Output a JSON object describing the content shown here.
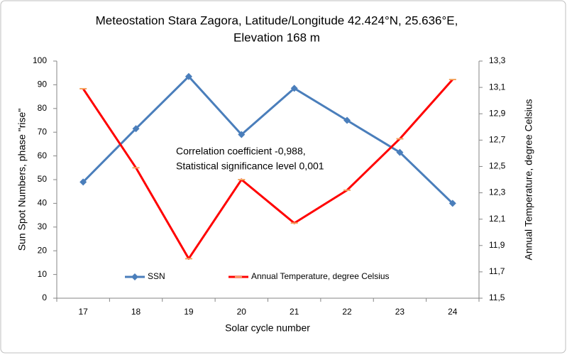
{
  "chart_data": {
    "type": "line",
    "title": [
      "Meteostation Stara Zagora, Latitude/Longitude 42.424°N, 25.636°E,",
      "Elevation 168 m"
    ],
    "x_label": "Solar cycle number",
    "y_label": "Sun Spot Numbers, phase \"rise\"",
    "y2_label": "Annual Temperature, degree Celsius",
    "annotation": [
      "Correlation coefficient -0,988,",
      "Statistical significance level 0,001"
    ],
    "categories": [
      "17",
      "18",
      "19",
      "20",
      "21",
      "22",
      "23",
      "24"
    ],
    "series": [
      {
        "name": "SSN",
        "color": "#4a7ebb",
        "values": [
          49,
          71.5,
          93.5,
          69,
          88.5,
          75,
          61.5,
          40
        ]
      },
      {
        "name": "Annual Temperature, degree Celsius",
        "color": "#ff0000",
        "axis": "y2",
        "values": [
          13.09,
          12.49,
          11.8,
          12.4,
          12.07,
          12.32,
          12.71,
          13.16
        ]
      }
    ],
    "ylim": [
      0,
      100
    ],
    "yticks": [
      0,
      10,
      20,
      30,
      40,
      50,
      60,
      70,
      80,
      90,
      100
    ],
    "y2lim": [
      11.5,
      13.3
    ],
    "y2ticks": [
      {
        "value": 11.5,
        "label": "11,5"
      },
      {
        "value": 11.7,
        "label": "11,7"
      },
      {
        "value": 11.9,
        "label": "11,9"
      },
      {
        "value": 12.1,
        "label": "12,1"
      },
      {
        "value": 12.3,
        "label": "12,3"
      },
      {
        "value": 12.5,
        "label": "12,5"
      },
      {
        "value": 12.7,
        "label": "12,7"
      },
      {
        "value": 12.9,
        "label": "12,9"
      },
      {
        "value": 13.1,
        "label": "13,1"
      },
      {
        "value": 13.3,
        "label": "13,3"
      }
    ],
    "grid": false,
    "legend": "bottom"
  }
}
